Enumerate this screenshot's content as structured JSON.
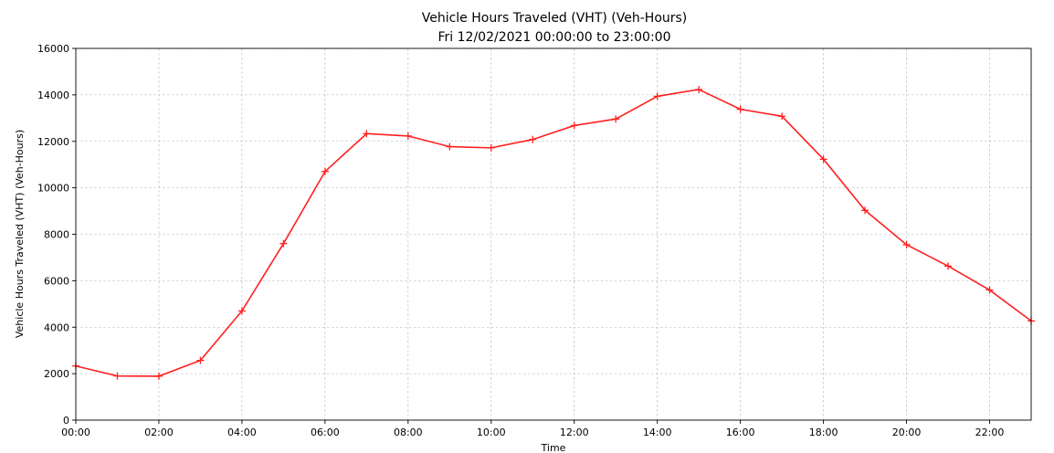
{
  "chart_data": {
    "type": "line",
    "title": "Vehicle Hours Traveled (VHT) (Veh-Hours)",
    "subtitle": "Fri 12/02/2021 00:00:00 to 23:00:00",
    "xlabel": "Time",
    "ylabel": "Vehicle Hours Traveled (VHT) (Veh-Hours)",
    "xlim": [
      "00:00",
      "23:00"
    ],
    "ylim": [
      0,
      16000
    ],
    "yticks": [
      0,
      2000,
      4000,
      6000,
      8000,
      10000,
      12000,
      14000,
      16000
    ],
    "xticks": [
      "00:00",
      "02:00",
      "04:00",
      "06:00",
      "08:00",
      "10:00",
      "12:00",
      "14:00",
      "16:00",
      "18:00",
      "20:00",
      "22:00"
    ],
    "grid": true,
    "marker": "+",
    "color": "#ff2020",
    "x": [
      "00:00",
      "01:00",
      "02:00",
      "03:00",
      "04:00",
      "05:00",
      "06:00",
      "07:00",
      "08:00",
      "09:00",
      "10:00",
      "11:00",
      "12:00",
      "13:00",
      "14:00",
      "15:00",
      "16:00",
      "17:00",
      "18:00",
      "19:00",
      "20:00",
      "21:00",
      "22:00",
      "23:00"
    ],
    "series": [
      {
        "values": [
          2330,
          1900,
          1890,
          2570,
          4700,
          7600,
          10700,
          12330,
          12230,
          11770,
          11720,
          12080,
          12680,
          12960,
          13940,
          14230,
          13380,
          13080,
          11230,
          9030,
          7550,
          6630,
          5600,
          4270
        ]
      }
    ]
  }
}
